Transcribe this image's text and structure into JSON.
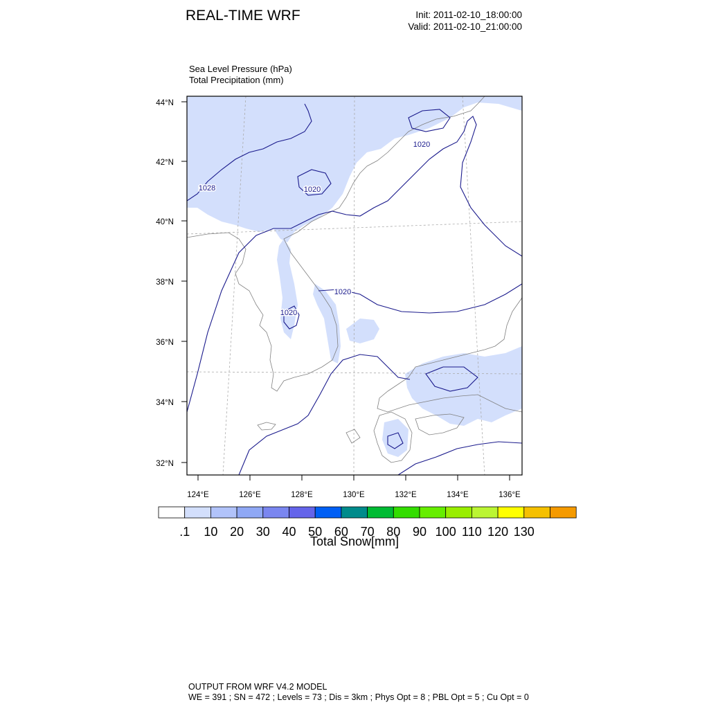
{
  "header": {
    "title": "REAL-TIME WRF",
    "init": "Init: 2011-02-10_18:00:00",
    "valid": "Valid: 2011-02-10_21:00:00"
  },
  "fields": {
    "line1": "Sea Level Pressure   (hPa)",
    "line2": "Total Precipitation   (mm)"
  },
  "map": {
    "lat_labels": [
      "44°N",
      "42°N",
      "40°N",
      "38°N",
      "36°N",
      "34°N",
      "32°N"
    ],
    "lon_labels": [
      "124°E",
      "126°E",
      "128°E",
      "130°E",
      "132°E",
      "134°E",
      "136°E"
    ],
    "contour_labels": [
      "1028",
      "1020",
      "1020",
      "1020",
      "1020"
    ],
    "colors": {
      "precip_shade": "#d3dffc",
      "isobar": "#1a1a8c",
      "coast": "#808080",
      "grid": "#aaaaaa"
    }
  },
  "colorbar": {
    "label": "Total Snow[mm]",
    "tick_labels": [
      ".1",
      "10",
      "20",
      "30",
      "40",
      "50",
      "60",
      "70",
      "80",
      "90",
      "100",
      "110",
      "120",
      "130"
    ],
    "colors": [
      "#ffffff",
      "#d3dffc",
      "#b1c3fa",
      "#8fa8f5",
      "#7a86f0",
      "#6464ea",
      "#005ff5",
      "#008b8b",
      "#00bb33",
      "#33dd00",
      "#66ee00",
      "#99ee00",
      "#bbf533",
      "#ffff00",
      "#f5c000",
      "#f59a00"
    ]
  },
  "footer": {
    "line1": "OUTPUT FROM WRF V4.2 MODEL",
    "line2": "WE = 391 ; SN = 472 ; Levels = 73 ; Dis = 3km ; Phys Opt = 8 ; PBL Opt = 5 ; Cu Opt = 0"
  }
}
